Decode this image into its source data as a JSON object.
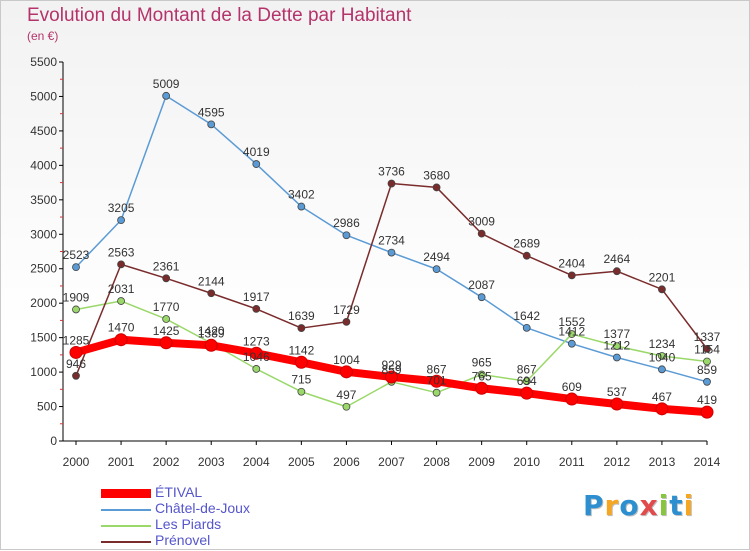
{
  "chart_data": {
    "type": "line",
    "title": "Evolution du Montant de la Dette par Habitant",
    "subtitle": "(en €)",
    "xlabel": "",
    "ylabel": "",
    "x": [
      "2000",
      "2001",
      "2002",
      "2003",
      "2004",
      "2005",
      "2006",
      "2007",
      "2008",
      "2009",
      "2010",
      "2011",
      "2012",
      "2013",
      "2014"
    ],
    "ylim": [
      0,
      5500
    ],
    "yticks": [
      0,
      500,
      1000,
      1500,
      2000,
      2500,
      3000,
      3500,
      4000,
      4500,
      5000,
      5500
    ],
    "grid": false,
    "legend_position": "bottom-left",
    "series": [
      {
        "name": "ÉTIVAL",
        "color": "#ff0000",
        "line_width": 8,
        "values": [
          1285,
          1470,
          1425,
          1389,
          1273,
          1142,
          1004,
          929,
          867,
          765,
          694,
          609,
          537,
          467,
          419
        ],
        "labels": [
          "1285",
          "1470",
          "1425",
          "1389",
          "1273",
          "1142",
          "1004",
          "929",
          "867",
          "765",
          "694",
          "609",
          "537",
          "467",
          "419"
        ]
      },
      {
        "name": "Châtel-de-Joux",
        "color": "#5b9bd5",
        "line_width": 1.5,
        "values": [
          2523,
          3205,
          5009,
          4595,
          4019,
          3402,
          2986,
          2734,
          2494,
          2087,
          1642,
          1412,
          1212,
          1040,
          859
        ],
        "labels": [
          "2523",
          "3205",
          "5009",
          "4595",
          "4019",
          "3402",
          "2986",
          "2734",
          "2494",
          "2087",
          "1642",
          "1412",
          "1212",
          "1040",
          "859"
        ]
      },
      {
        "name": "Les Piards",
        "color": "#9ad86a",
        "line_width": 1.5,
        "values": [
          1909,
          2031,
          1770,
          1420,
          1046,
          715,
          497,
          859,
          701,
          965,
          867,
          1552,
          1377,
          1234,
          1154
        ],
        "labels": [
          "1909",
          "2031",
          "1770",
          "1420",
          "1046",
          "715",
          "497",
          "859",
          "701",
          "965",
          "867",
          "1552",
          "1377",
          "1234",
          "1154"
        ]
      },
      {
        "name": "Prénovel",
        "color": "#7a2b2b",
        "line_width": 1.5,
        "values": [
          946,
          2563,
          2361,
          2144,
          1917,
          1639,
          1729,
          3736,
          3680,
          3009,
          2689,
          2404,
          2464,
          2201,
          1337
        ],
        "labels": [
          "946",
          "2563",
          "2361",
          "2144",
          "1917",
          "1639",
          "1729",
          "3736",
          "3680",
          "3009",
          "2689",
          "2404",
          "2464",
          "2201",
          "1337"
        ]
      }
    ]
  },
  "logo": {
    "letters": [
      "P",
      "r",
      "o",
      "x",
      "i",
      "t",
      "i"
    ],
    "colors": [
      "#2d8fd0",
      "#f5a623",
      "#2d8fd0",
      "#e14b4b",
      "#86c441",
      "#2d8fd0",
      "#f5a623"
    ]
  }
}
